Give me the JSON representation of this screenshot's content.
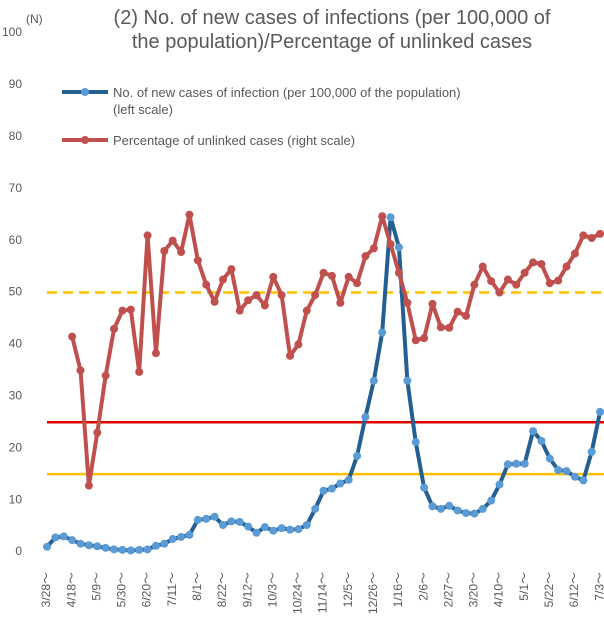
{
  "chart_data": {
    "type": "line",
    "title": "(2) No. of new cases of infections (per 100,000 of\nthe population)/Percentage of unlinked cases",
    "y_unit_label": "(N)",
    "categories": [
      "3/28～",
      null,
      null,
      "4/18～",
      null,
      null,
      "5/9～",
      null,
      null,
      "5/30～",
      null,
      null,
      "6/20～",
      null,
      null,
      "7/11～",
      null,
      null,
      "8/1～",
      null,
      null,
      "8/22～",
      null,
      null,
      "9/12～",
      null,
      null,
      "10/3～",
      null,
      null,
      "10/24～",
      null,
      null,
      "11/14～",
      null,
      null,
      "12/5～",
      null,
      null,
      "12/26～",
      null,
      null,
      "1/16～",
      null,
      null,
      "2/6～",
      null,
      null,
      "2/27～",
      null,
      null,
      "3/20～",
      null,
      null,
      "4/10～",
      null,
      null,
      "5/1～",
      null,
      null,
      "5/22～",
      null,
      null,
      "6/12～",
      null,
      null,
      "7/3～"
    ],
    "series": [
      {
        "name": "No. of new cases of infection (per 100,000 of the population)\n(left scale)",
        "color": "#255e91",
        "marker_color": "#5b9bd5",
        "values": [
          1,
          2.8,
          3,
          2.3,
          1.6,
          1.3,
          1.1,
          0.8,
          0.5,
          0.4,
          0.3,
          0.4,
          0.5,
          1.2,
          1.6,
          2.5,
          2.9,
          3.3,
          6.2,
          6.4,
          6.8,
          5.2,
          5.9,
          5.8,
          4.9,
          3.7,
          4.8,
          4.1,
          4.6,
          4.3,
          4.4,
          5.2,
          8.3,
          11.8,
          12.2,
          13.2,
          13.9,
          18.5,
          26,
          33,
          42.3,
          64.5,
          58.7,
          33,
          21.2,
          12.4,
          8.8,
          8.3,
          8.9,
          8,
          7.5,
          7.4,
          8.3,
          9.9,
          13,
          16.9,
          17,
          17,
          23.3,
          21.4,
          18,
          15.8,
          15.6,
          14.5,
          13.8,
          19.3,
          27
        ]
      },
      {
        "name": "Percentage of unlinked cases (right scale)",
        "color": "#c0504d",
        "marker_color": "#c0504d",
        "values": [
          null,
          null,
          null,
          41.5,
          35,
          12.8,
          23,
          34,
          43,
          46.5,
          46.7,
          34.7,
          61,
          38.3,
          58,
          60,
          57.8,
          65,
          56.2,
          51.5,
          48.2,
          52.5,
          54.5,
          46.5,
          48.5,
          49.5,
          47.5,
          53,
          49.5,
          37.8,
          40,
          46.5,
          49.5,
          53.8,
          53.2,
          48,
          53,
          51.8,
          57,
          58.5,
          64.7,
          59.3,
          53.8,
          48,
          40.8,
          41.2,
          47.8,
          43.3,
          43.2,
          46.3,
          45.5,
          51.5,
          55,
          52.2,
          50,
          52.5,
          51.5,
          53.8,
          55.8,
          55.5,
          51.8,
          52.3,
          55,
          57.5,
          61,
          60.5,
          61.3
        ]
      }
    ],
    "reference_lines": [
      {
        "value": 50,
        "color": "#ffc000",
        "dashed": true
      },
      {
        "value": 25,
        "color": "#e00000",
        "dashed": false
      },
      {
        "value": 15,
        "color": "#ffc000",
        "dashed": false
      }
    ],
    "ylim": [
      0,
      100
    ],
    "yticks": [
      0,
      10,
      20,
      30,
      40,
      50,
      60,
      70,
      80,
      90,
      100
    ]
  }
}
